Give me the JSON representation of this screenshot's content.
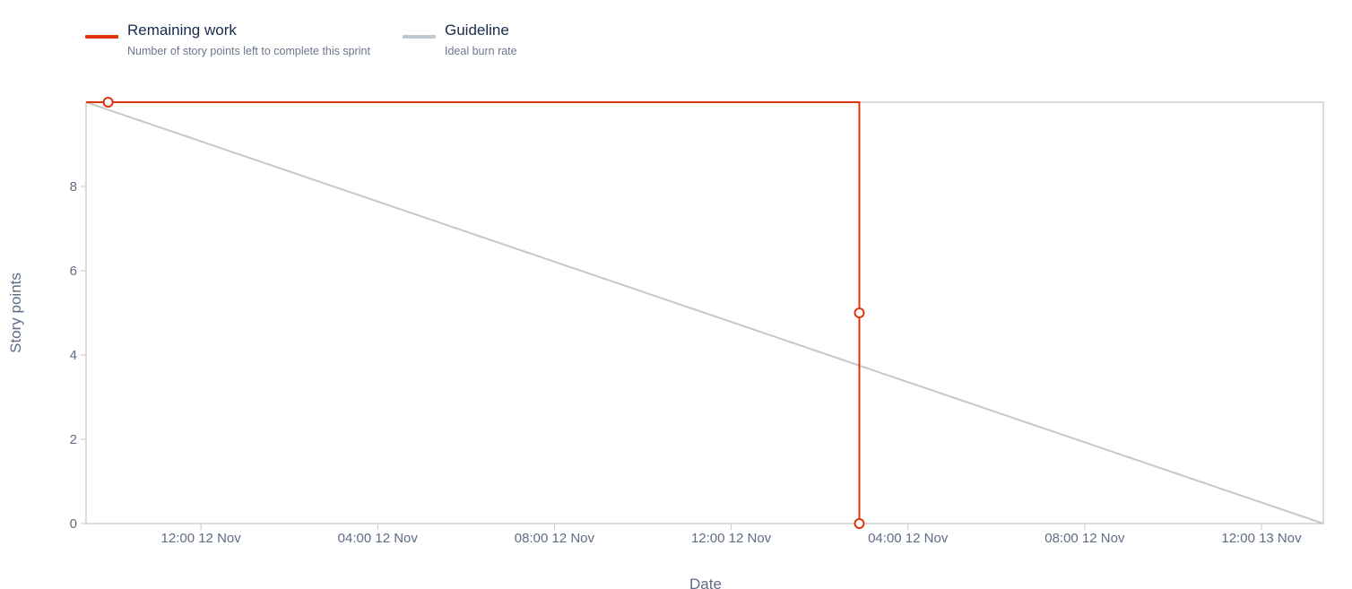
{
  "legend": {
    "items": [
      {
        "title": "Remaining work",
        "description": "Number of story points left to complete this sprint",
        "color": "#de350b"
      },
      {
        "title": "Guideline",
        "description": "Ideal burn rate",
        "color": "#c1c7d0"
      }
    ]
  },
  "chart_data": {
    "type": "line",
    "xlabel": "Date",
    "ylabel": "Story points",
    "ylim": [
      0,
      10
    ],
    "yticks": [
      0,
      2,
      4,
      6,
      8
    ],
    "xlim": [
      -0.65,
      13.35
    ],
    "xticks": [
      {
        "value": 0.65,
        "label": "12:00 12 Nov"
      },
      {
        "value": 2.65,
        "label": "04:00 12 Nov"
      },
      {
        "value": 4.65,
        "label": "08:00 12 Nov"
      },
      {
        "value": 6.65,
        "label": "12:00 12 Nov"
      },
      {
        "value": 8.65,
        "label": "04:00 12 Nov"
      },
      {
        "value": 10.65,
        "label": "08:00 12 Nov"
      },
      {
        "value": 12.65,
        "label": "12:00 13 Nov"
      }
    ],
    "grid": false,
    "series": [
      {
        "name": "Remaining work",
        "color": "#de350b",
        "step": true,
        "points": [
          {
            "x": -0.4,
            "y": 10
          },
          {
            "x": 8.1,
            "y": 5
          },
          {
            "x": 8.1,
            "y": 0
          }
        ],
        "line": [
          {
            "x": -0.65,
            "y": 10
          },
          {
            "x": 8.1,
            "y": 10
          },
          {
            "x": 8.1,
            "y": 0
          }
        ]
      },
      {
        "name": "Guideline",
        "color": "#c8c8c8",
        "points": [],
        "line": [
          {
            "x": -0.65,
            "y": 10
          },
          {
            "x": 13.35,
            "y": 0
          }
        ]
      }
    ]
  }
}
